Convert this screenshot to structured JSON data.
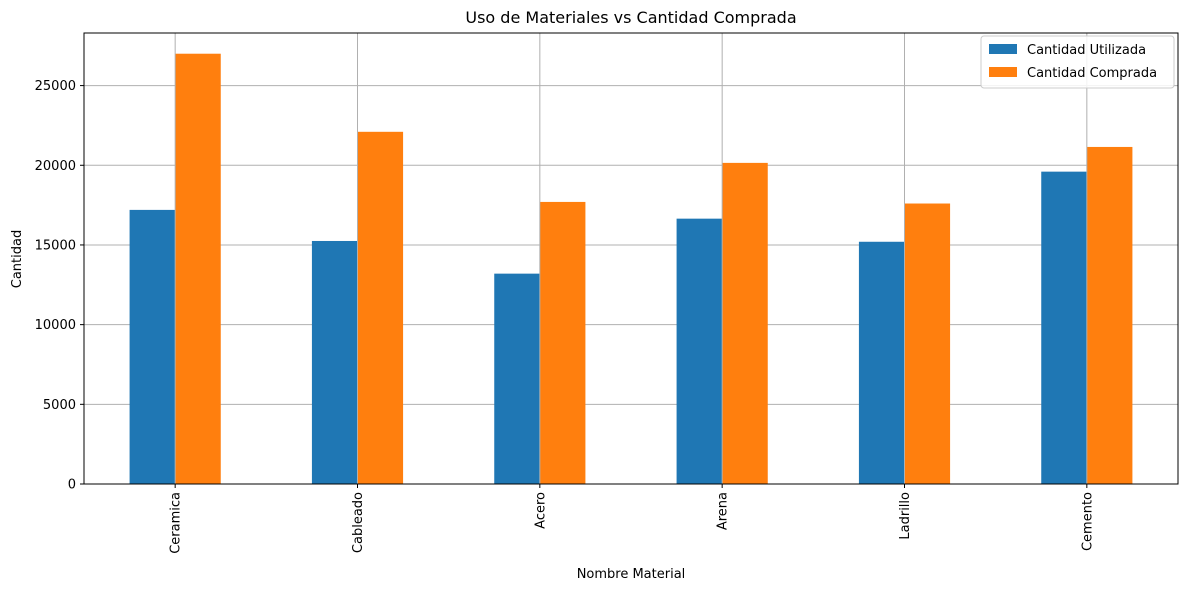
{
  "chart_data": {
    "type": "bar",
    "title": "Uso de Materiales vs Cantidad Comprada",
    "xlabel": "Nombre Material",
    "ylabel": "Cantidad",
    "categories": [
      "Ceramica",
      "Cableado",
      "Acero",
      "Arena",
      "Ladrillo",
      "Cemento"
    ],
    "series": [
      {
        "name": "Cantidad Utilizada",
        "color": "#1f77b4",
        "values": [
          17200,
          15250,
          13200,
          16650,
          15200,
          19600
        ]
      },
      {
        "name": "Cantidad Comprada",
        "color": "#ff7f0e",
        "values": [
          27000,
          22100,
          17700,
          20150,
          17600,
          21150
        ]
      }
    ],
    "ylim": [
      0,
      28300
    ],
    "yticks": [
      0,
      5000,
      10000,
      15000,
      20000,
      25000
    ],
    "grid": true,
    "legend_position": "top-right"
  }
}
